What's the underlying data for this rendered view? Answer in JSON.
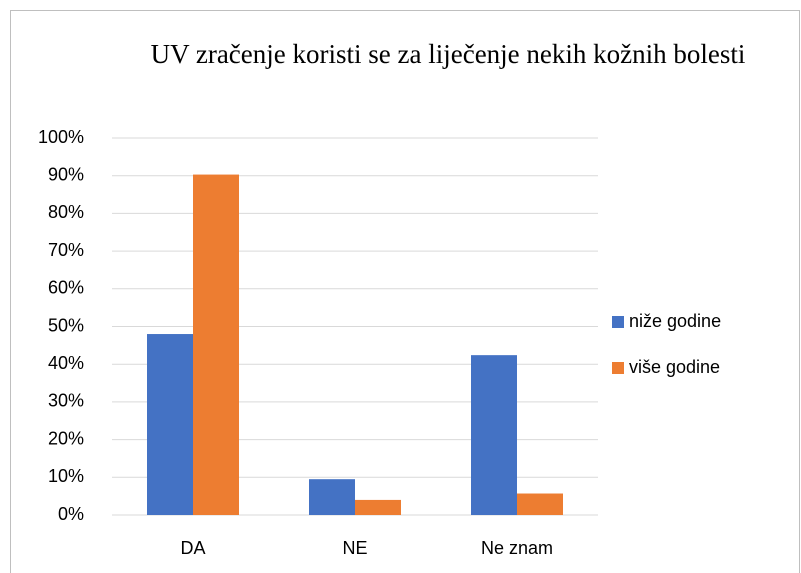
{
  "chart_data": {
    "type": "bar",
    "title": "UV zračenje koristi se za liječenje nekih kožnih bolesti",
    "categories": [
      "DA",
      "NE",
      "Ne znam"
    ],
    "series": [
      {
        "name": "niže godine",
        "color": "#4472c4",
        "values": [
          48,
          9.5,
          42.4
        ]
      },
      {
        "name": "više godine",
        "color": "#ed7d31",
        "values": [
          90.3,
          4,
          5.7
        ]
      }
    ],
    "ylim": [
      0,
      100
    ],
    "yticks": [
      {
        "value": 0,
        "label": "0%"
      },
      {
        "value": 10,
        "label": "10%"
      },
      {
        "value": 20,
        "label": "20%"
      },
      {
        "value": 30,
        "label": "30%"
      },
      {
        "value": 40,
        "label": "40%"
      },
      {
        "value": 50,
        "label": "50%"
      },
      {
        "value": 60,
        "label": "60%"
      },
      {
        "value": 70,
        "label": "70%"
      },
      {
        "value": 80,
        "label": "80%"
      },
      {
        "value": 90,
        "label": "90%"
      },
      {
        "value": 100,
        "label": "100%"
      }
    ],
    "grid": true,
    "legend": "right"
  }
}
